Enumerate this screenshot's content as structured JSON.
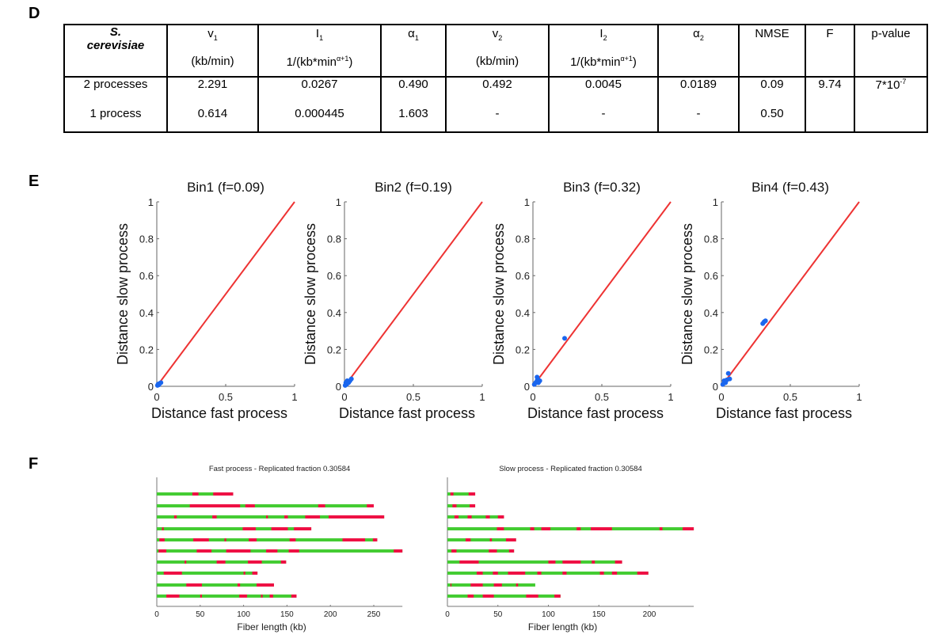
{
  "panels": {
    "d": "D",
    "e": "E",
    "f": "F"
  },
  "table": {
    "species_line1": "S.",
    "species_line2": "cerevisiae",
    "headers": [
      {
        "sym": "v",
        "sub": "1",
        "unit": "(kb/min)"
      },
      {
        "sym": "I",
        "sub": "1",
        "unit": "1/(kb*min",
        "unit_sup": "α+1",
        "unit_end": ")"
      },
      {
        "sym": "α",
        "sub": "1",
        "unit": ""
      },
      {
        "sym": "v",
        "sub": "2",
        "unit": "(kb/min)"
      },
      {
        "sym": "I",
        "sub": "2",
        "unit": "1/(kb*min",
        "unit_sup": "α+1",
        "unit_end": ")"
      },
      {
        "sym": "α",
        "sub": "2",
        "unit": ""
      },
      {
        "sym": "NMSE",
        "sub": "",
        "unit": ""
      },
      {
        "sym": "F",
        "sub": "",
        "unit": ""
      },
      {
        "sym": "p-value",
        "sub": "",
        "unit": ""
      }
    ],
    "rows": [
      {
        "label": "2 processes",
        "values": [
          "2.291",
          "0.0267",
          "0.490",
          "0.492",
          "0.0045",
          "0.0189",
          "0.09"
        ]
      },
      {
        "label": "1 process",
        "values": [
          "0.614",
          "0.000445",
          "1.603",
          "-",
          "-",
          "-",
          "0.50"
        ]
      }
    ],
    "F": "9.74",
    "p_base": "7*10",
    "p_exp": "-7"
  },
  "colors": {
    "line": "#ee3333",
    "points": "#1a66ee",
    "replicated": "#ee1144",
    "unreplicated": "#44cc33"
  },
  "chart_data": [
    {
      "type": "scatter",
      "title": "Bin1 (f=0.09)",
      "xlabel": "Distance fast process",
      "ylabel": "Distance slow process",
      "xlim": [
        0,
        1
      ],
      "ylim": [
        0,
        1
      ],
      "xticks": [
        "0",
        "0.5",
        "1"
      ],
      "yticks": [
        "0",
        "0.2",
        "0.4",
        "0.6",
        "0.8",
        "1"
      ],
      "line": [
        [
          0,
          0
        ],
        [
          1,
          1
        ]
      ],
      "points": [
        [
          0.005,
          0.005
        ],
        [
          0.01,
          0.012
        ],
        [
          0.02,
          0.015
        ],
        [
          0.03,
          0.02
        ],
        [
          0.015,
          0.008
        ]
      ]
    },
    {
      "type": "scatter",
      "title": "Bin2 (f=0.19)",
      "xlabel": "Distance fast process",
      "ylabel": "Distance slow process",
      "xlim": [
        0,
        1
      ],
      "ylim": [
        0,
        1
      ],
      "xticks": [
        "0",
        "0.5",
        "1"
      ],
      "yticks": [
        "0",
        "0.2",
        "0.4",
        "0.6",
        "0.8",
        "1"
      ],
      "line": [
        [
          0,
          0
        ],
        [
          1,
          1
        ]
      ],
      "points": [
        [
          0.005,
          0.005
        ],
        [
          0.01,
          0.02
        ],
        [
          0.02,
          0.03
        ],
        [
          0.03,
          0.02
        ],
        [
          0.04,
          0.03
        ],
        [
          0.05,
          0.04
        ],
        [
          0.015,
          0.01
        ]
      ]
    },
    {
      "type": "scatter",
      "title": "Bin3 (f=0.32)",
      "xlabel": "Distance fast process",
      "ylabel": "Distance slow process",
      "xlim": [
        0,
        1
      ],
      "ylim": [
        0,
        1
      ],
      "xticks": [
        "0",
        "0.5",
        "1"
      ],
      "yticks": [
        "0",
        "0.2",
        "0.4",
        "0.6",
        "0.8",
        "1"
      ],
      "line": [
        [
          0,
          0
        ],
        [
          1,
          1
        ]
      ],
      "points": [
        [
          0.23,
          0.26
        ],
        [
          0.03,
          0.05
        ],
        [
          0.035,
          0.04
        ],
        [
          0.05,
          0.03
        ],
        [
          0.02,
          0.02
        ],
        [
          0.01,
          0.01
        ],
        [
          0.03,
          0.03
        ],
        [
          0.04,
          0.02
        ]
      ]
    },
    {
      "type": "scatter",
      "title": "Bin4 (f=0.43)",
      "xlabel": "Distance fast process",
      "ylabel": "Distance slow process",
      "xlim": [
        0,
        1
      ],
      "ylim": [
        0,
        1
      ],
      "xticks": [
        "0",
        "0.5",
        "1"
      ],
      "yticks": [
        "0",
        "0.2",
        "0.4",
        "0.6",
        "0.8",
        "1"
      ],
      "line": [
        [
          0,
          0
        ],
        [
          1,
          1
        ]
      ],
      "points": [
        [
          0.3,
          0.34
        ],
        [
          0.31,
          0.35
        ],
        [
          0.32,
          0.355
        ],
        [
          0.05,
          0.07
        ],
        [
          0.06,
          0.04
        ],
        [
          0.02,
          0.03
        ],
        [
          0.03,
          0.02
        ],
        [
          0.01,
          0.01
        ],
        [
          0.04,
          0.035
        ]
      ]
    },
    {
      "type": "bar",
      "title": "Fast process - Replicated fraction 0.30584",
      "xlabel": "Fiber length (kb)",
      "xlim": [
        0,
        283
      ],
      "xticks": [
        0,
        50,
        100,
        150,
        200,
        250
      ],
      "fibers": [
        {
          "length": 88,
          "replicated": [
            [
              41,
              48
            ],
            [
              65,
              88
            ]
          ]
        },
        {
          "length": 250,
          "replicated": [
            [
              38,
              96
            ],
            [
              102,
              113
            ],
            [
              186,
              194
            ],
            [
              242,
              250
            ]
          ]
        },
        {
          "length": 262,
          "replicated": [
            [
              20,
              23
            ],
            [
              64,
              69
            ],
            [
              126,
              128
            ],
            [
              147,
              151
            ],
            [
              171,
              188
            ],
            [
              198,
              262
            ]
          ]
        },
        {
          "length": 178,
          "replicated": [
            [
              6,
              8
            ],
            [
              99,
              114
            ],
            [
              132,
              151
            ],
            [
              158,
              178
            ]
          ]
        },
        {
          "length": 254,
          "replicated": [
            [
              3,
              9
            ],
            [
              42,
              60
            ],
            [
              78,
              80
            ],
            [
              106,
              115
            ],
            [
              153,
              160
            ],
            [
              214,
              240
            ],
            [
              249,
              254
            ]
          ]
        },
        {
          "length": 283,
          "replicated": [
            [
              2,
              11
            ],
            [
              46,
              63
            ],
            [
              80,
              108
            ],
            [
              126,
              139
            ],
            [
              152,
              164
            ],
            [
              273,
              283
            ]
          ]
        },
        {
          "length": 149,
          "replicated": [
            [
              32,
              34
            ],
            [
              69,
              79
            ],
            [
              105,
              121
            ],
            [
              143,
              149
            ]
          ]
        },
        {
          "length": 116,
          "replicated": [
            [
              8,
              29
            ],
            [
              100,
              102
            ],
            [
              110,
              116
            ]
          ]
        },
        {
          "length": 135,
          "replicated": [
            [
              34,
              52
            ],
            [
              93,
              96
            ],
            [
              115,
              135
            ]
          ]
        },
        {
          "length": 161,
          "replicated": [
            [
              11,
              26
            ],
            [
              50,
              52
            ],
            [
              95,
              104
            ],
            [
              120,
              122
            ],
            [
              130,
              134
            ],
            [
              155,
              161
            ]
          ]
        }
      ]
    },
    {
      "type": "bar",
      "title": "Slow process - Replicated fraction 0.30584",
      "xlabel": "Fiber length (kb)",
      "xlim": [
        0,
        244
      ],
      "xticks": [
        0,
        50,
        100,
        150,
        200
      ],
      "fibers": [
        {
          "length": 27.5,
          "replicated": [
            [
              3,
              6
            ],
            [
              21,
              27.5
            ]
          ]
        },
        {
          "length": 27.5,
          "replicated": [
            [
              5,
              9
            ],
            [
              22,
              27.5
            ]
          ]
        },
        {
          "length": 56,
          "replicated": [
            [
              7,
              11
            ],
            [
              20,
              24
            ],
            [
              38,
              42
            ],
            [
              50,
              56
            ]
          ]
        },
        {
          "length": 244,
          "replicated": [
            [
              49,
              56
            ],
            [
              82,
              86
            ],
            [
              93,
              102
            ],
            [
              128,
              132
            ],
            [
              142,
              163
            ],
            [
              210,
              213
            ],
            [
              233,
              244
            ]
          ]
        },
        {
          "length": 68,
          "replicated": [
            [
              18,
              23
            ],
            [
              42,
              44
            ],
            [
              58,
              68
            ]
          ]
        },
        {
          "length": 66,
          "replicated": [
            [
              4,
              9
            ],
            [
              41,
              49
            ],
            [
              61,
              66
            ]
          ]
        },
        {
          "length": 173,
          "replicated": [
            [
              12,
              31
            ],
            [
              100,
              107
            ],
            [
              114,
              132
            ],
            [
              143,
              146
            ],
            [
              166,
              173
            ]
          ]
        },
        {
          "length": 199,
          "replicated": [
            [
              29,
              35
            ],
            [
              45,
              50
            ],
            [
              60,
              77
            ],
            [
              89,
              93
            ],
            [
              114,
              118
            ],
            [
              151,
              155
            ],
            [
              163,
              168
            ],
            [
              188,
              199
            ]
          ]
        },
        {
          "length": 87,
          "replicated": [
            [
              3,
              4
            ],
            [
              23,
              35
            ],
            [
              46,
              54
            ],
            [
              68,
              70
            ]
          ]
        },
        {
          "length": 112,
          "replicated": [
            [
              20,
              26
            ],
            [
              35,
              46
            ],
            [
              78,
              90
            ],
            [
              106,
              112
            ]
          ]
        }
      ]
    }
  ]
}
